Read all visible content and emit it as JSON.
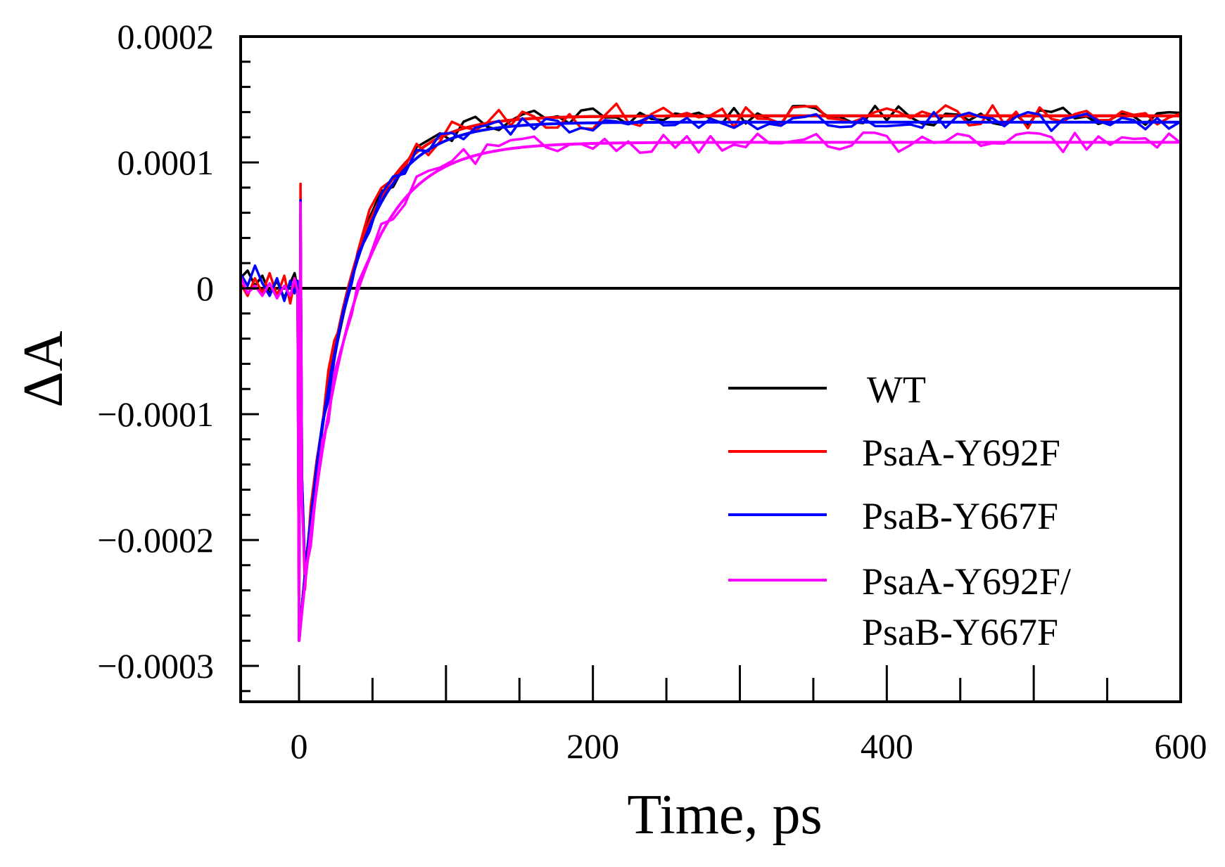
{
  "chart_data": {
    "type": "line",
    "title": "",
    "xlabel": "Time, ps",
    "ylabel": "ΔA",
    "xlim": [
      -40,
      600
    ],
    "ylim": [
      -0.00033,
      0.0002
    ],
    "x_ticks": [
      0,
      200,
      400,
      600
    ],
    "x_tick_labels": [
      "0",
      "200",
      "400",
      "600"
    ],
    "y_ticks": [
      -0.0003,
      -0.0002,
      -0.0001,
      0,
      0.0001,
      0.0002
    ],
    "y_tick_labels": [
      "−0.0003",
      "−0.0002",
      "−0.0001",
      "0",
      "0.0001",
      "0.0002"
    ],
    "zero_line": true,
    "grid": false,
    "legend_position": "bottom-right",
    "fit_model": "A_inf - (A_inf - A_min) * exp(-t / tau) for t >= 0",
    "series": [
      {
        "name": "WT",
        "color": "#000000",
        "fit": {
          "A_min": -0.00028,
          "A_inf": 0.000137,
          "tau": 30
        },
        "noise_amplitude": 8e-06,
        "points": [
          [
            -40,
            8e-06
          ],
          [
            -35,
            1.4e-05
          ],
          [
            -30,
            2e-06
          ],
          [
            -25,
            1e-05
          ],
          [
            -20,
            -4e-06
          ],
          [
            -15,
            6e-06
          ],
          [
            -10,
            -8e-06
          ],
          [
            -6,
            4e-06
          ],
          [
            -3,
            1.2e-05
          ],
          [
            -1,
            0.0
          ],
          [
            0,
            -0.00028
          ],
          [
            1,
            5e-05
          ],
          [
            2,
            -0.00015
          ]
        ]
      },
      {
        "name": "PsaA-Y692F",
        "color": "#ff0000",
        "fit": {
          "A_min": -0.00028,
          "A_inf": 0.000137,
          "tau": 30
        },
        "noise_amplitude": 1e-05,
        "points": [
          [
            -40,
            4e-06
          ],
          [
            -35,
            -6e-06
          ],
          [
            -30,
            8e-06
          ],
          [
            -25,
            -4e-06
          ],
          [
            -20,
            1.2e-05
          ],
          [
            -15,
            -6e-06
          ],
          [
            -10,
            1e-05
          ],
          [
            -6,
            -1.2e-05
          ],
          [
            -3,
            6e-06
          ],
          [
            -1,
            -4e-06
          ],
          [
            0,
            -0.00028
          ],
          [
            1,
            8.3e-05
          ],
          [
            2,
            -0.00016
          ]
        ]
      },
      {
        "name": "PsaB-Y667F",
        "color": "#0000ff",
        "fit": {
          "A_min": -0.00028,
          "A_inf": 0.000132,
          "tau": 30
        },
        "noise_amplitude": 8e-06,
        "points": [
          [
            -40,
            1.2e-05
          ],
          [
            -35,
            2e-06
          ],
          [
            -30,
            1.8e-05
          ],
          [
            -25,
            4e-06
          ],
          [
            -20,
            -6e-06
          ],
          [
            -15,
            8e-06
          ],
          [
            -10,
            -1e-05
          ],
          [
            -6,
            6e-06
          ],
          [
            -3,
            -4e-06
          ],
          [
            -1,
            6e-06
          ],
          [
            0,
            -0.00028
          ],
          [
            1,
            7e-05
          ],
          [
            2,
            -0.00015
          ]
        ]
      },
      {
        "name": "PsaA-Y692F/\nPsaB-Y667F",
        "color": "#ff00ff",
        "fit": {
          "A_min": -0.00028,
          "A_inf": 0.000116,
          "tau": 33
        },
        "noise_amplitude": 8e-06,
        "points": [
          [
            -40,
            1e-05
          ],
          [
            -35,
            -4e-06
          ],
          [
            -30,
            2e-06
          ],
          [
            -25,
            -6e-06
          ],
          [
            -20,
            4e-06
          ],
          [
            -15,
            -8e-06
          ],
          [
            -10,
            2e-06
          ],
          [
            -6,
            -6e-06
          ],
          [
            -3,
            8e-06
          ],
          [
            -1,
            -2e-06
          ],
          [
            0,
            -0.00028
          ],
          [
            1,
            6.8e-05
          ],
          [
            2,
            -0.00017
          ]
        ]
      }
    ]
  }
}
